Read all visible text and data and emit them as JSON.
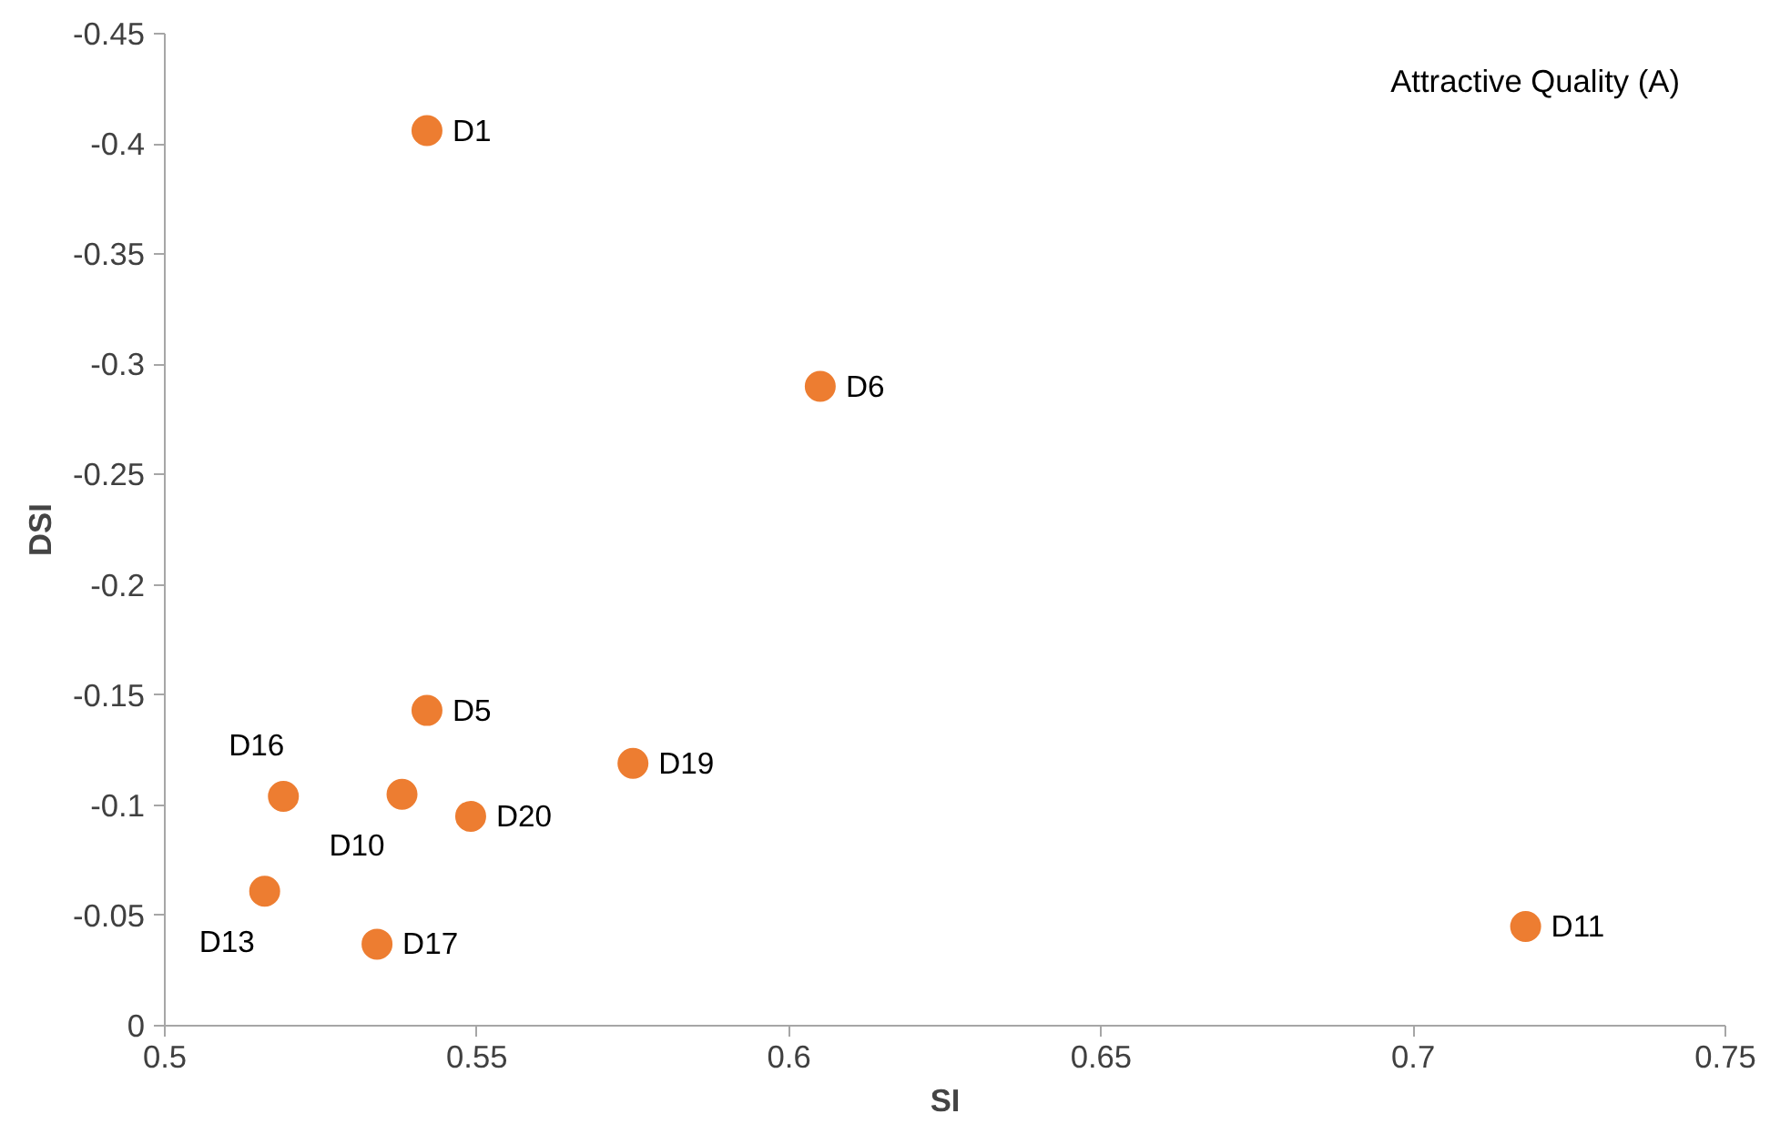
{
  "chart_data": {
    "type": "scatter",
    "xlabel": "SI",
    "ylabel": "DSI",
    "marker": "circle",
    "grid": false,
    "xlim": [
      0.5,
      0.75
    ],
    "xticks": [
      0.5,
      0.55,
      0.6,
      0.65,
      0.7,
      0.75
    ],
    "ylim": [
      0,
      -0.45
    ],
    "yticks": [
      0,
      -0.05,
      -0.1,
      -0.15,
      -0.2,
      -0.25,
      -0.3,
      -0.35,
      -0.4,
      -0.45
    ],
    "x": [
      0.542,
      0.605,
      0.542,
      0.575,
      0.519,
      0.538,
      0.549,
      0.516,
      0.534,
      0.718
    ],
    "series": [
      {
        "color": "#ed7d31",
        "values": [
          -0.406,
          -0.29,
          -0.143,
          -0.119,
          -0.104,
          -0.105,
          -0.095,
          -0.061,
          -0.037,
          -0.045
        ]
      }
    ],
    "annotations": [
      "Attractive Quality (A)",
      {
        "text": "D1",
        "x": 0.542,
        "y": -0.406
      },
      {
        "text": "D6",
        "x": 0.605,
        "y": -0.29
      },
      {
        "text": "D5",
        "x": 0.542,
        "y": -0.143
      },
      {
        "text": "D19",
        "x": 0.575,
        "y": -0.119
      },
      {
        "text": "D16",
        "x": 0.519,
        "y": -0.104
      },
      {
        "text": "D10",
        "x": 0.538,
        "y": -0.105
      },
      {
        "text": "D20",
        "x": 0.549,
        "y": -0.095
      },
      {
        "text": "D13",
        "x": 0.516,
        "y": -0.061
      },
      {
        "text": "D17",
        "x": 0.534,
        "y": -0.037
      },
      {
        "text": "D11",
        "x": 0.718,
        "y": -0.045
      }
    ]
  }
}
